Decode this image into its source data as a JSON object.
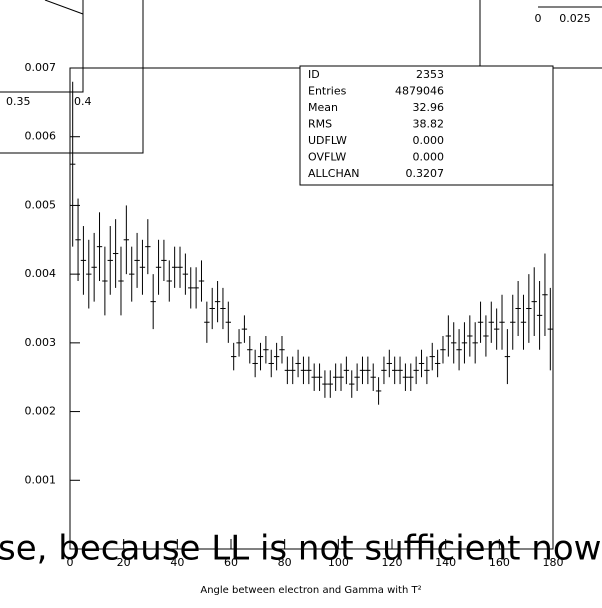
{
  "chart_data": {
    "type": "histogram",
    "x_label": "Angle between electron and Gamma with T²",
    "bins": [
      0,
      2,
      4,
      6,
      8,
      10,
      12,
      14,
      16,
      18,
      20,
      22,
      24,
      26,
      28,
      30,
      32,
      34,
      36,
      38,
      40,
      42,
      44,
      46,
      48,
      50,
      52,
      54,
      56,
      58,
      60,
      62,
      64,
      66,
      68,
      70,
      72,
      74,
      76,
      78,
      80,
      82,
      84,
      86,
      88,
      90,
      92,
      94,
      96,
      98,
      100,
      102,
      104,
      106,
      108,
      110,
      112,
      114,
      116,
      118,
      120,
      122,
      124,
      126,
      128,
      130,
      132,
      134,
      136,
      138,
      140,
      142,
      144,
      146,
      148,
      150,
      152,
      154,
      156,
      158,
      160,
      162,
      164,
      166,
      168,
      170,
      172,
      174,
      176,
      178,
      180
    ],
    "values": [
      0.0056,
      0.0045,
      0.0042,
      0.004,
      0.0041,
      0.0044,
      0.0039,
      0.0042,
      0.0043,
      0.0039,
      0.0045,
      0.004,
      0.0042,
      0.0041,
      0.0044,
      0.0036,
      0.0041,
      0.0042,
      0.0039,
      0.0041,
      0.0041,
      0.004,
      0.0038,
      0.0038,
      0.0039,
      0.0033,
      0.0035,
      0.0036,
      0.0035,
      0.0033,
      0.0028,
      0.003,
      0.0032,
      0.0029,
      0.0027,
      0.0028,
      0.0029,
      0.0027,
      0.0028,
      0.0029,
      0.0026,
      0.0026,
      0.0027,
      0.0026,
      0.0026,
      0.0025,
      0.0025,
      0.0024,
      0.0024,
      0.0025,
      0.0025,
      0.0026,
      0.0024,
      0.0025,
      0.0026,
      0.0026,
      0.0025,
      0.0023,
      0.0026,
      0.0027,
      0.0026,
      0.0026,
      0.0025,
      0.0025,
      0.0026,
      0.0027,
      0.0026,
      0.0028,
      0.0027,
      0.0029,
      0.0031,
      0.003,
      0.0029,
      0.003,
      0.0031,
      0.003,
      0.0033,
      0.0031,
      0.0033,
      0.0032,
      0.0033,
      0.0028,
      0.0033,
      0.0035,
      0.0033,
      0.0035,
      0.0036,
      0.0034,
      0.0037,
      0.0032
    ],
    "errors": [
      0.0012,
      0.0006,
      0.0005,
      0.0005,
      0.0005,
      0.0005,
      0.0005,
      0.0005,
      0.0005,
      0.0005,
      0.0005,
      0.0004,
      0.0004,
      0.0004,
      0.0004,
      0.0004,
      0.0004,
      0.0003,
      0.0003,
      0.0003,
      0.0003,
      0.0003,
      0.0003,
      0.0003,
      0.0003,
      0.0003,
      0.0003,
      0.0003,
      0.0003,
      0.0003,
      0.0002,
      0.0002,
      0.0002,
      0.0002,
      0.0002,
      0.0002,
      0.0002,
      0.0002,
      0.0002,
      0.0002,
      0.0002,
      0.0002,
      0.0002,
      0.0002,
      0.0002,
      0.0002,
      0.0002,
      0.0002,
      0.0002,
      0.0002,
      0.0002,
      0.0002,
      0.0002,
      0.0002,
      0.0002,
      0.0002,
      0.0002,
      0.0002,
      0.0002,
      0.0002,
      0.0002,
      0.0002,
      0.0002,
      0.0002,
      0.0002,
      0.0002,
      0.0002,
      0.0002,
      0.0002,
      0.0002,
      0.0003,
      0.0003,
      0.0003,
      0.0003,
      0.0003,
      0.0003,
      0.0003,
      0.0003,
      0.0003,
      0.0003,
      0.0004,
      0.0004,
      0.0004,
      0.0004,
      0.0004,
      0.0005,
      0.0005,
      0.0005,
      0.0006,
      0.0006
    ],
    "color": "#000000",
    "xlim": [
      0,
      180
    ],
    "xticks": [
      0,
      20,
      40,
      60,
      80,
      100,
      120,
      140,
      160,
      180
    ],
    "ylim": [
      0,
      0.007
    ],
    "yticks": [
      0.001,
      0.002,
      0.003,
      0.004,
      0.005,
      0.006,
      0.007
    ],
    "stats": [
      [
        "ID",
        "2353"
      ],
      [
        "Entries",
        "4879046"
      ],
      [
        "Mean",
        "32.96"
      ],
      [
        "RMS",
        "38.82"
      ],
      [
        "UDFLW",
        "0.000"
      ],
      [
        "OVFLW",
        "0.000"
      ],
      [
        "ALLCHAN",
        "0.3207"
      ]
    ]
  },
  "insets": {
    "top_left_ticks": [
      "0.35",
      "0.4"
    ],
    "top_right_ticks": [
      "0",
      "0.025"
    ]
  },
  "overlay_text": "se, because LL is not sufficient now"
}
